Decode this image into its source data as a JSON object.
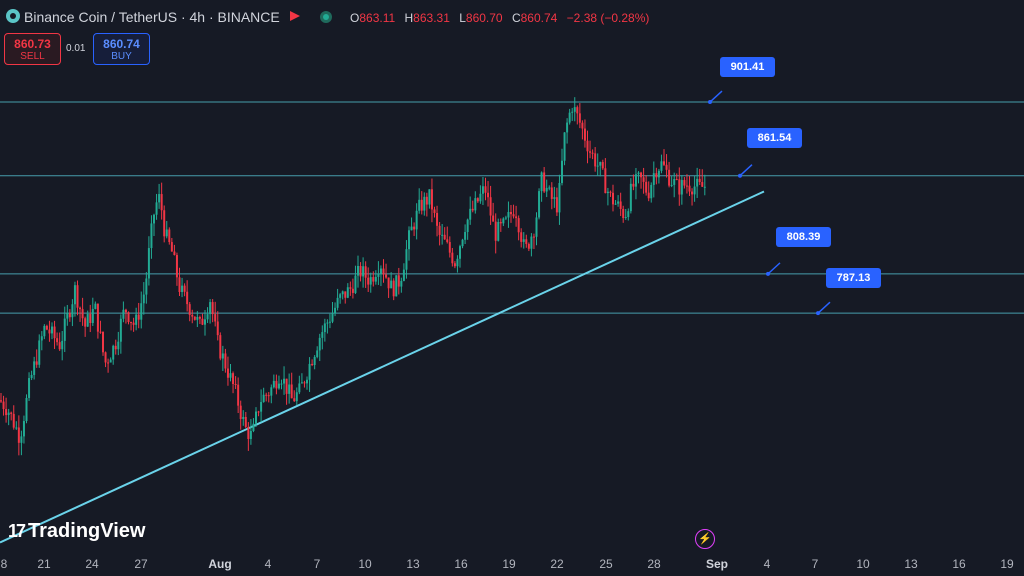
{
  "header": {
    "title": "Binance Coin / TetherUS · 4h · BINANCE",
    "ohlc": {
      "o_label": "O",
      "o": "863.11",
      "h_label": "H",
      "h": "863.31",
      "l_label": "L",
      "l": "860.70",
      "c_label": "C",
      "c": "860.74",
      "change": "−2.38 (−0.28%)"
    }
  },
  "trade": {
    "sell_price": "860.73",
    "sell_label": "SELL",
    "spread": "0.01",
    "buy_price": "860.74",
    "buy_label": "BUY"
  },
  "brand": {
    "logo_text": "TradingView",
    "logo_mark": "17"
  },
  "icons": [
    "symbol-icon",
    "flag-icon",
    "live-dot-icon",
    "tradingview-logo-icon",
    "lightning-icon"
  ],
  "colors": {
    "up": "#22ab94",
    "down": "#f23645",
    "level_line": "#4fb4c4",
    "trendline": "#6ad3ea",
    "label_bg": "#2962ff",
    "background": "#161a25"
  },
  "chart_data": {
    "type": "candlestick",
    "title": "Binance Coin / TetherUS · 4h · BINANCE",
    "x_ticks": [
      "8",
      "21",
      "24",
      "27",
      "Aug",
      "4",
      "7",
      "10",
      "13",
      "16",
      "19",
      "22",
      "25",
      "28",
      "Sep",
      "4",
      "7",
      "10",
      "13",
      "16",
      "19"
    ],
    "ylim": [
      660,
      935
    ],
    "grid": false,
    "horizontal_levels": [
      901.41,
      861.54,
      808.39,
      787.13
    ],
    "level_labels": [
      "901.41",
      "861.54",
      "808.39",
      "787.13"
    ],
    "trendline": {
      "from": [
        "Jul 18",
        663
      ],
      "to": [
        "Sep 4",
        853
      ]
    },
    "price_path": [
      [
        0,
        740
      ],
      [
        8,
        735
      ],
      [
        20,
        720
      ],
      [
        30,
        750
      ],
      [
        45,
        780
      ],
      [
        60,
        770
      ],
      [
        75,
        800
      ],
      [
        85,
        780
      ],
      [
        95,
        790
      ],
      [
        105,
        760
      ],
      [
        115,
        770
      ],
      [
        125,
        790
      ],
      [
        135,
        780
      ],
      [
        145,
        800
      ],
      [
        150,
        825
      ],
      [
        155,
        845
      ],
      [
        160,
        850
      ],
      [
        165,
        830
      ],
      [
        172,
        820
      ],
      [
        180,
        800
      ],
      [
        190,
        790
      ],
      [
        200,
        780
      ],
      [
        210,
        795
      ],
      [
        218,
        770
      ],
      [
        225,
        760
      ],
      [
        235,
        745
      ],
      [
        245,
        725
      ],
      [
        252,
        720
      ],
      [
        260,
        740
      ],
      [
        270,
        745
      ],
      [
        280,
        755
      ],
      [
        292,
        740
      ],
      [
        300,
        745
      ],
      [
        310,
        760
      ],
      [
        320,
        775
      ],
      [
        330,
        785
      ],
      [
        340,
        795
      ],
      [
        350,
        800
      ],
      [
        360,
        810
      ],
      [
        370,
        805
      ],
      [
        380,
        815
      ],
      [
        392,
        800
      ],
      [
        400,
        805
      ],
      [
        410,
        830
      ],
      [
        420,
        845
      ],
      [
        430,
        850
      ],
      [
        438,
        830
      ],
      [
        445,
        825
      ],
      [
        455,
        815
      ],
      [
        465,
        835
      ],
      [
        475,
        845
      ],
      [
        485,
        855
      ],
      [
        495,
        830
      ],
      [
        505,
        835
      ],
      [
        515,
        845
      ],
      [
        525,
        820
      ],
      [
        535,
        835
      ],
      [
        542,
        860
      ],
      [
        550,
        850
      ],
      [
        558,
        845
      ],
      [
        565,
        885
      ],
      [
        572,
        900
      ],
      [
        580,
        890
      ],
      [
        590,
        875
      ],
      [
        600,
        865
      ],
      [
        610,
        850
      ],
      [
        618,
        845
      ],
      [
        625,
        840
      ],
      [
        632,
        855
      ],
      [
        640,
        860
      ],
      [
        648,
        852
      ],
      [
        655,
        865
      ],
      [
        662,
        868
      ],
      [
        670,
        860
      ],
      [
        678,
        855
      ],
      [
        686,
        857
      ],
      [
        694,
        856
      ],
      [
        700,
        855
      ],
      [
        705,
        856
      ]
    ]
  }
}
